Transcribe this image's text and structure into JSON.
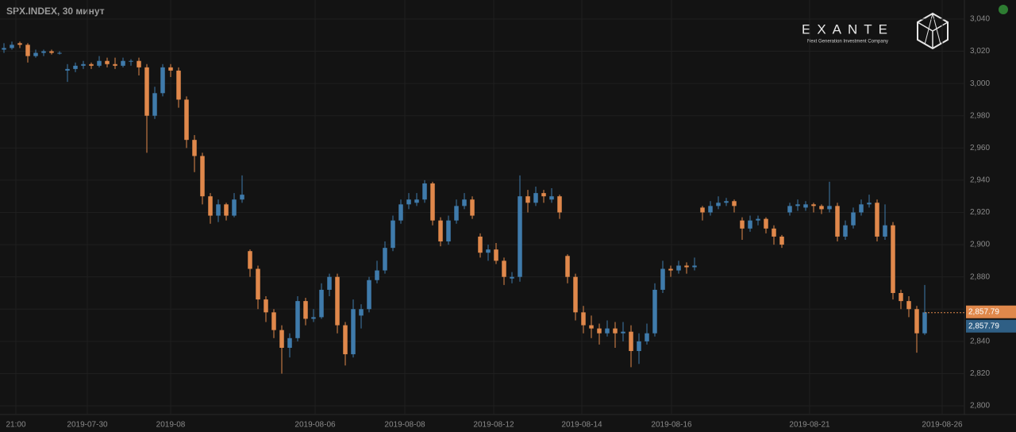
{
  "chart_data": {
    "type": "candlestick",
    "title": "SPX.INDEX, 30 минут",
    "brand": {
      "name": "EXANTE",
      "tagline": "Next Generation Investment Company"
    },
    "up_color": "#3f7bab",
    "down_color": "#e0884b",
    "grid": true,
    "x": [
      0,
      1,
      2,
      3,
      4,
      5,
      6,
      7,
      8,
      9,
      10,
      11,
      12,
      13,
      14,
      15,
      16,
      17,
      18,
      19,
      20,
      21,
      22,
      23,
      24,
      25,
      26,
      27,
      28,
      29,
      30,
      31,
      32,
      33,
      34,
      35,
      36,
      37,
      38,
      39,
      40,
      41,
      42,
      43,
      44,
      45,
      46,
      47,
      48,
      49,
      50,
      51,
      52,
      53,
      54,
      55,
      56,
      57,
      58,
      59,
      60,
      61,
      62,
      63,
      64,
      65,
      66,
      67,
      68,
      69,
      70,
      71,
      72,
      73,
      74,
      75,
      76,
      77,
      78,
      79,
      80,
      81,
      82,
      83,
      84,
      85,
      86,
      87,
      88,
      89,
      90,
      91,
      92,
      93,
      94,
      95,
      96,
      97,
      98,
      99,
      100,
      101,
      102,
      103,
      104,
      105,
      106,
      107,
      108,
      109,
      110,
      111,
      112,
      113,
      114,
      115,
      116
    ],
    "open": [
      3021,
      3022,
      3025,
      3024,
      3017,
      3019,
      3020,
      3019,
      3008,
      3009,
      3011,
      3012,
      3011,
      3014,
      3012,
      3011,
      3014,
      3014,
      3010,
      2980,
      2994,
      3010,
      3008,
      2990,
      2965,
      2955,
      2930,
      2918,
      2925,
      2918,
      2928,
      2896,
      2885,
      2866,
      2858,
      2847,
      2836,
      2842,
      2865,
      2854,
      2855,
      2872,
      2880,
      2850,
      2832,
      2856,
      2860,
      2878,
      2884,
      2898,
      2915,
      2925,
      2926,
      2928,
      2938,
      2915,
      2902,
      2915,
      2924,
      2928,
      2905,
      2895,
      2897,
      2890,
      2879,
      2880,
      2930,
      2926,
      2932,
      2928,
      2930,
      2893,
      2880,
      2858,
      2850,
      2848,
      2845,
      2848,
      2845,
      2846,
      2834,
      2840,
      2845,
      2872,
      2885,
      2884,
      2887,
      2886,
      2923,
      2920,
      2924,
      2926,
      2927,
      2915,
      2910,
      2915,
      2916,
      2910,
      2905,
      2920,
      2924,
      2923,
      2925,
      2924,
      2922,
      2924,
      2905,
      2912,
      2920,
      2925,
      2926,
      2905,
      2912,
      2870,
      2865,
      2860,
      2845
    ],
    "high": [
      3025,
      3026,
      3026,
      3025,
      3021,
      3021,
      3021,
      3020,
      3012,
      3013,
      3014,
      3013,
      3017,
      3016,
      3016,
      3016,
      3015,
      3016,
      3012,
      2998,
      3012,
      3012,
      3010,
      2992,
      2968,
      2957,
      2932,
      2928,
      2926,
      2932,
      2943,
      2897,
      2887,
      2868,
      2860,
      2850,
      2845,
      2868,
      2867,
      2860,
      2876,
      2882,
      2882,
      2852,
      2866,
      2863,
      2880,
      2890,
      2902,
      2918,
      2928,
      2932,
      2932,
      2940,
      2939,
      2917,
      2918,
      2928,
      2932,
      2930,
      2907,
      2900,
      2901,
      2892,
      2883,
      2943,
      2934,
      2936,
      2934,
      2935,
      2931,
      2894,
      2882,
      2862,
      2856,
      2851,
      2853,
      2852,
      2852,
      2850,
      2845,
      2851,
      2876,
      2890,
      2887,
      2890,
      2889,
      2892,
      2924,
      2927,
      2930,
      2929,
      2928,
      2917,
      2918,
      2918,
      2917,
      2912,
      2906,
      2926,
      2928,
      2927,
      2926,
      2925,
      2939,
      2926,
      2915,
      2923,
      2928,
      2931,
      2928,
      2925,
      2914,
      2872,
      2868,
      2862,
      2875
    ],
    "low": [
      3019,
      3021,
      3022,
      3013,
      3016,
      3017,
      3018,
      3018,
      3001,
      3007,
      3009,
      3009,
      3010,
      3010,
      3009,
      3010,
      3011,
      3005,
      2957,
      2978,
      2992,
      3004,
      2985,
      2960,
      2945,
      2925,
      2913,
      2914,
      2915,
      2917,
      2926,
      2880,
      2860,
      2852,
      2842,
      2820,
      2830,
      2840,
      2850,
      2852,
      2854,
      2868,
      2845,
      2825,
      2830,
      2848,
      2858,
      2876,
      2882,
      2896,
      2913,
      2922,
      2924,
      2926,
      2912,
      2899,
      2900,
      2913,
      2922,
      2916,
      2892,
      2890,
      2888,
      2875,
      2876,
      2877,
      2920,
      2924,
      2926,
      2926,
      2916,
      2876,
      2853,
      2845,
      2842,
      2838,
      2843,
      2836,
      2840,
      2824,
      2826,
      2838,
      2843,
      2870,
      2880,
      2882,
      2882,
      2884,
      2915,
      2918,
      2922,
      2924,
      2920,
      2903,
      2908,
      2912,
      2907,
      2900,
      2898,
      2918,
      2921,
      2921,
      2920,
      2919,
      2920,
      2902,
      2903,
      2910,
      2918,
      2923,
      2902,
      2903,
      2866,
      2860,
      2855,
      2833,
      2844
    ],
    "close": [
      3022,
      3024,
      3024,
      3017,
      3019,
      3020,
      3019,
      3019,
      3009,
      3011,
      3012,
      3011,
      3014,
      3012,
      3011,
      3014,
      3014,
      3010,
      2980,
      2994,
      3010,
      3008,
      2990,
      2965,
      2955,
      2930,
      2918,
      2925,
      2918,
      2928,
      2931,
      2885,
      2866,
      2858,
      2847,
      2836,
      2842,
      2865,
      2854,
      2855,
      2872,
      2880,
      2850,
      2832,
      2860,
      2860,
      2878,
      2884,
      2898,
      2915,
      2925,
      2928,
      2928,
      2938,
      2915,
      2902,
      2915,
      2924,
      2928,
      2918,
      2895,
      2897,
      2890,
      2880,
      2880,
      2930,
      2926,
      2932,
      2930,
      2930,
      2920,
      2880,
      2858,
      2850,
      2848,
      2845,
      2848,
      2845,
      2846,
      2834,
      2840,
      2845,
      2872,
      2885,
      2884,
      2887,
      2886,
      2887,
      2920,
      2924,
      2926,
      2927,
      2924,
      2910,
      2915,
      2916,
      2910,
      2905,
      2900,
      2924,
      2925,
      2925,
      2924,
      2922,
      2924,
      2905,
      2912,
      2920,
      2925,
      2926,
      2905,
      2912,
      2870,
      2865,
      2860,
      2845,
      2858
    ],
    "xlim": [
      -0.5,
      121
    ],
    "xticks": [
      {
        "value": 1.5,
        "label": "21:00"
      },
      {
        "value": 10.5,
        "label": "2019-07-30"
      },
      {
        "value": 21,
        "label": "2019-08"
      },
      {
        "value": 39.2,
        "label": "2019-08-06"
      },
      {
        "value": 50.5,
        "label": "2019-08-08"
      },
      {
        "value": 61.7,
        "label": "2019-08-12"
      },
      {
        "value": 72.8,
        "label": "2019-08-14"
      },
      {
        "value": 84.1,
        "label": "2019-08-16"
      },
      {
        "value": 101.5,
        "label": "2019-08-21"
      },
      {
        "value": 118.2,
        "label": "2019-08-26"
      }
    ],
    "ylim": [
      2794.6,
      3051.8
    ],
    "yticks": [
      {
        "value": 2800,
        "label": "2,800"
      },
      {
        "value": 2820,
        "label": "2,820"
      },
      {
        "value": 2840,
        "label": "2,840"
      },
      {
        "value": 2860,
        "label": "2,860"
      },
      {
        "value": 2880,
        "label": "2,880"
      },
      {
        "value": 2900,
        "label": "2,900"
      },
      {
        "value": 2920,
        "label": "2,920"
      },
      {
        "value": 2940,
        "label": "2,940"
      },
      {
        "value": 2960,
        "label": "2,960"
      },
      {
        "value": 2980,
        "label": "2,980"
      },
      {
        "value": 3000,
        "label": "3,000"
      },
      {
        "value": 3020,
        "label": "3,020"
      },
      {
        "value": 3040,
        "label": "3,040"
      }
    ],
    "last_price": {
      "value": 2857.79,
      "label": "2,857.79"
    }
  }
}
